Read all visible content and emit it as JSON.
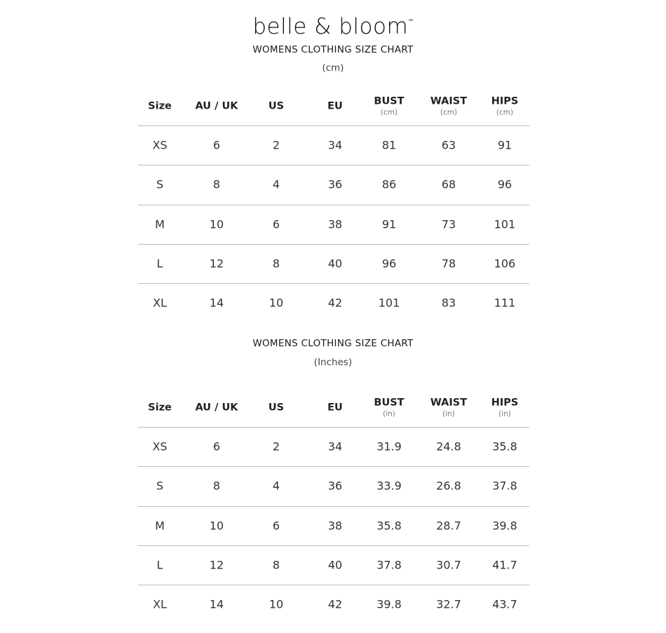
{
  "brand": {
    "name": "belle & bloom",
    "trademark": "™"
  },
  "columns": [
    "Size",
    "AU / UK",
    "US",
    "EU",
    "BUST",
    "WAIST",
    "HIPS"
  ],
  "charts": [
    {
      "title": "WOMENS CLOTHING SIZE CHART",
      "unit_label": "(cm)",
      "column_units": [
        "",
        "",
        "",
        "",
        "(cm)",
        "(cm)",
        "(cm)"
      ],
      "rows": [
        [
          "XS",
          "6",
          "2",
          "34",
          "81",
          "63",
          "91"
        ],
        [
          "S",
          "8",
          "4",
          "36",
          "86",
          "68",
          "96"
        ],
        [
          "M",
          "10",
          "6",
          "38",
          "91",
          "73",
          "101"
        ],
        [
          "L",
          "12",
          "8",
          "40",
          "96",
          "78",
          "106"
        ],
        [
          "XL",
          "14",
          "10",
          "42",
          "101",
          "83",
          "111"
        ]
      ]
    },
    {
      "title": "WOMENS CLOTHING SIZE CHART",
      "unit_label": "(Inches)",
      "column_units": [
        "",
        "",
        "",
        "",
        "(in)",
        "(in)",
        "(in)"
      ],
      "rows": [
        [
          "XS",
          "6",
          "2",
          "34",
          "31.9",
          "24.8",
          "35.8"
        ],
        [
          "S",
          "8",
          "4",
          "36",
          "33.9",
          "26.8",
          "37.8"
        ],
        [
          "M",
          "10",
          "6",
          "38",
          "35.8",
          "28.7",
          "39.8"
        ],
        [
          "L",
          "12",
          "8",
          "40",
          "37.8",
          "30.7",
          "41.7"
        ],
        [
          "XL",
          "14",
          "10",
          "42",
          "39.8",
          "32.7",
          "43.7"
        ]
      ]
    }
  ]
}
